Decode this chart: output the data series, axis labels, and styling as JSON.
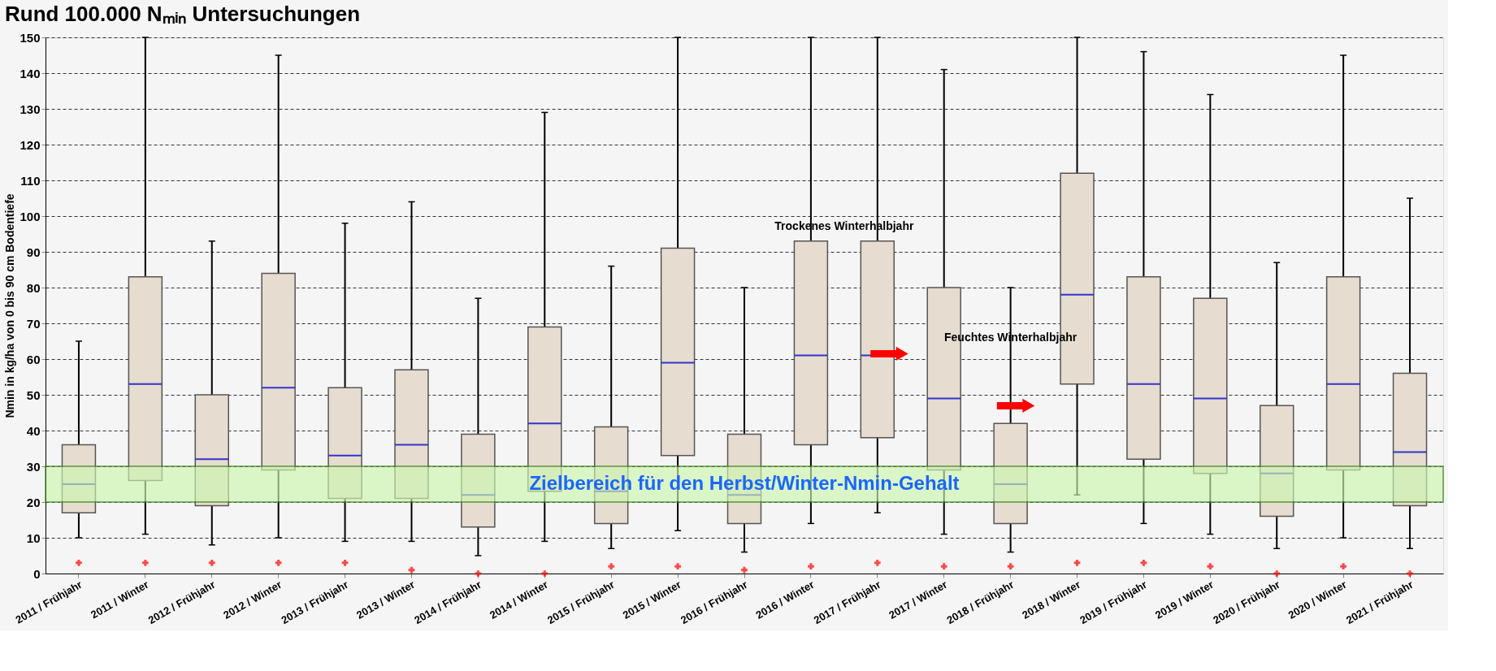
{
  "chart_data": {
    "type": "box",
    "title": "Rund 100.000 Nₘᵢₙ Untersuchungen",
    "ylabel": "Nmin  in kg/ha von 0 bis 90 cm Bodentiefe",
    "categories": [
      "2011 / Frühjahr",
      "2011 / Winter",
      "2012 / Frühjahr",
      "2012 / Winter",
      "2013 / Frühjahr",
      "2013 / Winter",
      "2014 / Frühjahr",
      "2014 / Winter",
      "2015 / Frühjahr",
      "2015 / Winter",
      "2016 / Frühjahr",
      "2016 / Winter",
      "2017 / Frühjahr",
      "2017 / Winter",
      "2018 / Frühjahr",
      "2018 / Winter",
      "2019 / Frühjahr",
      "2019 / Winter",
      "2020 / Frühjahr",
      "2020 / Winter",
      "2021 / Frühjahr"
    ],
    "boxes": [
      {
        "low": 10,
        "q1": 17,
        "median": 25,
        "q3": 36,
        "high": 65,
        "outliers": [
          3
        ]
      },
      {
        "low": 11,
        "q1": 26,
        "median": 53,
        "q3": 83,
        "high": 150,
        "outliers": [
          3
        ]
      },
      {
        "low": 8,
        "q1": 19,
        "median": 32,
        "q3": 50,
        "high": 93,
        "outliers": [
          3
        ]
      },
      {
        "low": 10,
        "q1": 29,
        "median": 52,
        "q3": 84,
        "high": 145,
        "outliers": [
          3
        ]
      },
      {
        "low": 9,
        "q1": 21,
        "median": 33,
        "q3": 52,
        "high": 98,
        "outliers": [
          3
        ]
      },
      {
        "low": 9,
        "q1": 21,
        "median": 36,
        "q3": 57,
        "high": 104,
        "outliers": [
          1
        ]
      },
      {
        "low": 5,
        "q1": 13,
        "median": 22,
        "q3": 39,
        "high": 77,
        "outliers": [
          0
        ]
      },
      {
        "low": 9,
        "q1": 23,
        "median": 42,
        "q3": 69,
        "high": 129,
        "outliers": [
          0
        ]
      },
      {
        "low": 7,
        "q1": 14,
        "median": 23,
        "q3": 41,
        "high": 86,
        "outliers": [
          2
        ]
      },
      {
        "low": 12,
        "q1": 33,
        "median": 59,
        "q3": 91,
        "high": 150,
        "outliers": [
          2
        ]
      },
      {
        "low": 6,
        "q1": 14,
        "median": 22,
        "q3": 39,
        "high": 80,
        "outliers": [
          1
        ]
      },
      {
        "low": 14,
        "q1": 36,
        "median": 61,
        "q3": 93,
        "high": 150,
        "outliers": [
          2
        ]
      },
      {
        "low": 17,
        "q1": 38,
        "median": 61,
        "q3": 93,
        "high": 150,
        "outliers": [
          3
        ]
      },
      {
        "low": 11,
        "q1": 29,
        "median": 49,
        "q3": 80,
        "high": 141,
        "outliers": [
          2
        ]
      },
      {
        "low": 6,
        "q1": 14,
        "median": 25,
        "q3": 42,
        "high": 80,
        "outliers": [
          2
        ]
      },
      {
        "low": 22,
        "q1": 53,
        "median": 78,
        "q3": 112,
        "high": 150,
        "outliers": [
          3
        ]
      },
      {
        "low": 14,
        "q1": 32,
        "median": 53,
        "q3": 83,
        "high": 146,
        "outliers": [
          3
        ]
      },
      {
        "low": 11,
        "q1": 28,
        "median": 49,
        "q3": 77,
        "high": 134,
        "outliers": [
          2
        ]
      },
      {
        "low": 7,
        "q1": 16,
        "median": 28,
        "q3": 47,
        "high": 87,
        "outliers": [
          0
        ]
      },
      {
        "low": 10,
        "q1": 29,
        "median": 53,
        "q3": 83,
        "high": 145,
        "outliers": [
          2
        ]
      },
      {
        "low": 7,
        "q1": 19,
        "median": 34,
        "q3": 56,
        "high": 105,
        "outliers": [
          0
        ]
      }
    ],
    "color": "#e6dccf",
    "ylim": [
      0,
      150
    ],
    "yticks": [
      0,
      10,
      20,
      30,
      40,
      50,
      60,
      70,
      80,
      90,
      100,
      110,
      120,
      130,
      140,
      150
    ],
    "grid": "y",
    "bands": [
      {
        "axis": "y",
        "from": 20,
        "to": 30,
        "label": "Zielbereich für den Herbst/Winter-Nmin-Gehalt",
        "color": "#ccf7b0"
      }
    ],
    "annotations": [
      "Trockenes Winterhalbjahr",
      "Feuchtes Winterhalbjahr"
    ]
  }
}
